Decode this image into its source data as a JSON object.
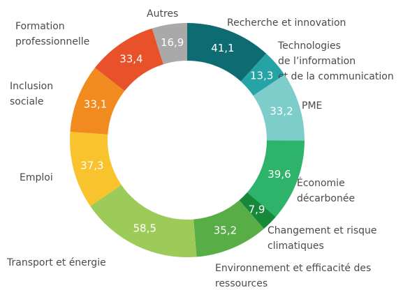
{
  "chart_data": {
    "type": "donut",
    "categories": [
      [
        "Recherche et innovation"
      ],
      [
        "Technologies",
        "de l’information",
        "et de la communication"
      ],
      [
        "PME"
      ],
      [
        "Économie",
        "décarbonée"
      ],
      [
        "Changement et risque",
        "climatiques"
      ],
      [
        "Environnement et efficacité des",
        "ressources"
      ],
      [
        "Transport et énergie"
      ],
      [
        "Emploi"
      ],
      [
        "Inclusion",
        "sociale"
      ],
      [
        "Formation",
        "professionnelle"
      ],
      [
        "Autres"
      ]
    ],
    "values": [
      41.1,
      13.3,
      33.2,
      39.6,
      7.9,
      35.2,
      58.5,
      37.3,
      33.1,
      33.4,
      16.9
    ],
    "value_labels": [
      "41,1",
      "13,3",
      "33,2",
      "39,6",
      "7,9",
      "35,2",
      "58,5",
      "37,3",
      "33,1",
      "33,4",
      "16,9"
    ],
    "colors": [
      "#0f6b72",
      "#26a3a4",
      "#7dcdcb",
      "#2db36a",
      "#17883a",
      "#58ad47",
      "#9ccb5a",
      "#f9c32d",
      "#f28b1f",
      "#e9512a",
      "#a9a9a9"
    ]
  }
}
